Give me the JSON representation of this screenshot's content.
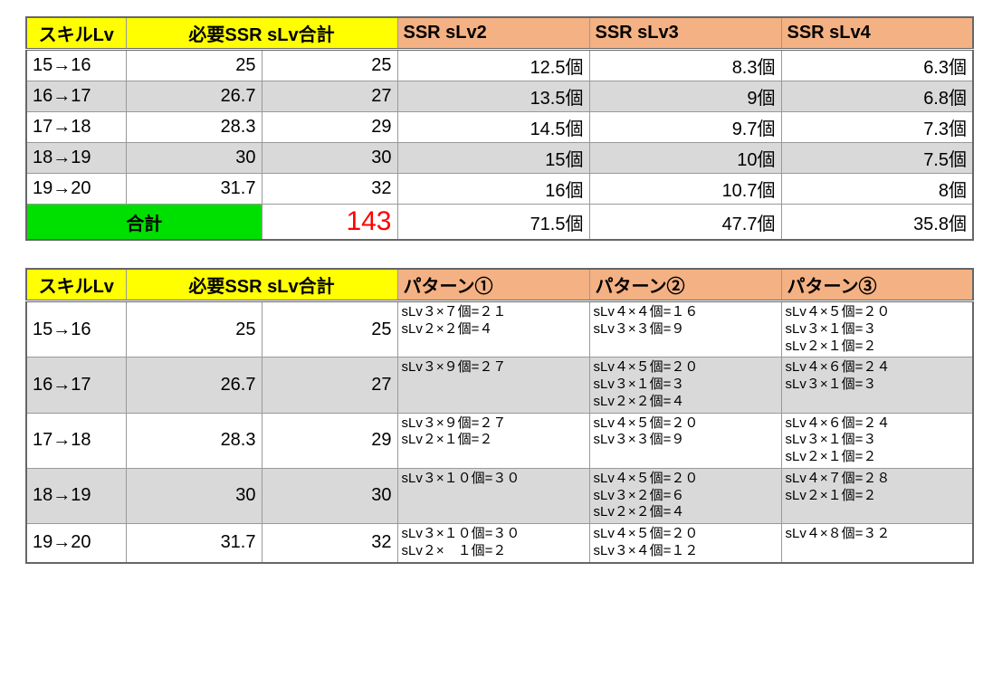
{
  "table1": {
    "headers": {
      "skill": "スキルLv",
      "req": "必要SSR sLv合計",
      "c1": "SSR sLv2",
      "c2": "SSR sLv3",
      "c3": "SSR sLv4"
    },
    "rows": [
      {
        "lv": "15→16",
        "r1": "25",
        "r2": "25",
        "v1": "12.5個",
        "v2": "8.3個",
        "v3": "6.3個",
        "alt": false
      },
      {
        "lv": "16→17",
        "r1": "26.7",
        "r2": "27",
        "v1": "13.5個",
        "v2": "9個",
        "v3": "6.8個",
        "alt": true
      },
      {
        "lv": "17→18",
        "r1": "28.3",
        "r2": "29",
        "v1": "14.5個",
        "v2": "9.7個",
        "v3": "7.3個",
        "alt": false
      },
      {
        "lv": "18→19",
        "r1": "30",
        "r2": "30",
        "v1": "15個",
        "v2": "10個",
        "v3": "7.5個",
        "alt": true
      },
      {
        "lv": "19→20",
        "r1": "31.7",
        "r2": "32",
        "v1": "16個",
        "v2": "10.7個",
        "v3": "8個",
        "alt": false
      }
    ],
    "total": {
      "label": "合計",
      "val": "143",
      "v1": "71.5個",
      "v2": "47.7個",
      "v3": "35.8個"
    },
    "widths": {
      "skill": 110,
      "r1": 150,
      "r2": 150,
      "v": 212
    }
  },
  "table2": {
    "headers": {
      "skill": "スキルLv",
      "req": "必要SSR sLv合計",
      "p1": "パターン①",
      "p2": "パターン②",
      "p3": "パターン③"
    },
    "rows": [
      {
        "lv": "15→16",
        "r1": "25",
        "r2": "25",
        "p1": "sLv３×７個=２１\nsLv２×２個=４",
        "p2": "sLv４×４個=１６\nsLv３×３個=９",
        "p3": "sLv４×５個=２０\nsLv３×１個=３\nsLv２×１個=２",
        "alt": false
      },
      {
        "lv": "16→17",
        "r1": "26.7",
        "r2": "27",
        "p1": "sLv３×９個=２７",
        "p2": "sLv４×５個=２０\nsLv３×１個=３\nsLv２×２個=４",
        "p3": "sLv４×６個=２４\nsLv３×１個=３",
        "alt": true
      },
      {
        "lv": "17→18",
        "r1": "28.3",
        "r2": "29",
        "p1": "sLv３×９個=２７\nsLv２×１個=２",
        "p2": "sLv４×５個=２０\nsLv３×３個=９",
        "p3": "sLv４×６個=２４\nsLv３×１個=３\nsLv２×１個=２",
        "alt": false
      },
      {
        "lv": "18→19",
        "r1": "30",
        "r2": "30",
        "p1": "sLv３×１０個=３０",
        "p2": "sLv４×５個=２０\nsLv３×２個=６\nsLv２×２個=４",
        "p3": "sLv４×７個=２８\nsLv２×１個=２",
        "alt": true
      },
      {
        "lv": "19→20",
        "r1": "31.7",
        "r2": "32",
        "p1": "sLv３×１０個=３０\nsLv２×　１個=２",
        "p2": "sLv４×５個=２０\nsLv３×４個=１２",
        "p3": "sLv４×８個=３２",
        "alt": false
      }
    ],
    "widths": {
      "skill": 110,
      "r1": 150,
      "r2": 150,
      "p": 212
    }
  },
  "colors": {
    "yellow": "#ffff00",
    "peach": "#f4b183",
    "alt": "#d9d9d9",
    "green": "#00e000",
    "red": "#ff0000"
  }
}
